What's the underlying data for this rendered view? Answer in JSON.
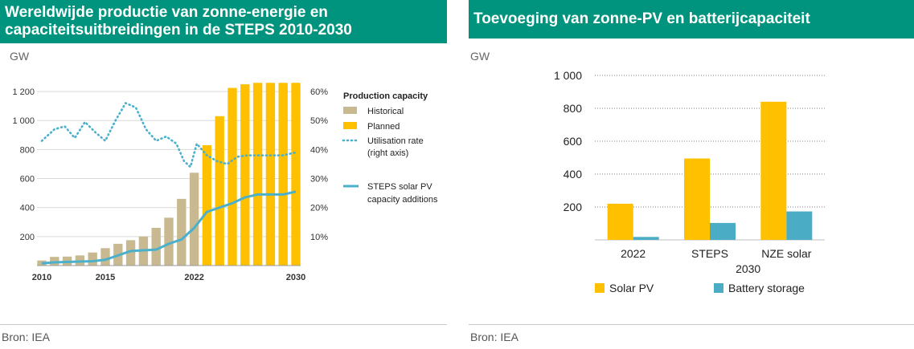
{
  "left": {
    "title": "Wereldwijde productie van zonne-energie en capaciteitsuitbreidingen in de STEPS 2010-2030",
    "unit": "GW",
    "source": "Bron: IEA"
  },
  "right": {
    "title": "Toevoeging van zonne-PV en batterijcapaciteit",
    "unit": "GW",
    "source": "Bron: IEA"
  },
  "colors": {
    "header_bg": "#00947e",
    "historical": "#c9b990",
    "planned": "#ffc000",
    "steps_line": "#4ab0cc",
    "solar_pv": "#ffc000",
    "battery": "#4bacc6"
  },
  "chart_data": [
    {
      "type": "bar",
      "title": "Wereldwijde productie van zonne-energie en capaciteitsuitbreidingen in de STEPS 2010-2030",
      "ylabel": "GW",
      "ylim": [
        0,
        1300
      ],
      "y_ticks": [
        200,
        400,
        600,
        800,
        1000,
        1200
      ],
      "y_tick_labels": [
        "200",
        "400",
        "600",
        "800",
        "1 000",
        "1 200"
      ],
      "y2lim": [
        0,
        0.65
      ],
      "y2_ticks": [
        0.1,
        0.2,
        0.3,
        0.4,
        0.5,
        0.6
      ],
      "y2_tick_labels": [
        "10%",
        "20%",
        "30%",
        "40%",
        "50%",
        "60%"
      ],
      "x_tick_labels": [
        "2010",
        "2015",
        "2022",
        "2030"
      ],
      "x_tick_years": [
        2010,
        2015,
        2022,
        2030
      ],
      "legend_title": "Production capacity",
      "x": [
        2010,
        2011,
        2012,
        2013,
        2014,
        2015,
        2016,
        2017,
        2018,
        2019,
        2020,
        2021,
        2022,
        2023,
        2024,
        2025,
        2026,
        2027,
        2028,
        2029,
        2030
      ],
      "series": [
        {
          "name": "Historical",
          "kind": "bar",
          "axis": "left",
          "values": [
            35,
            60,
            62,
            70,
            90,
            120,
            150,
            175,
            200,
            260,
            330,
            460,
            640,
            null,
            null,
            null,
            null,
            null,
            null,
            null,
            null
          ]
        },
        {
          "name": "Planned",
          "kind": "bar",
          "axis": "left",
          "values": [
            null,
            null,
            null,
            null,
            null,
            null,
            null,
            null,
            null,
            null,
            null,
            null,
            null,
            830,
            1030,
            1225,
            1250,
            1260,
            1260,
            1260,
            1260
          ]
        },
        {
          "name": "Utilisation rate",
          "label_lines": [
            "Utilisation rate",
            "(right axis)"
          ],
          "kind": "line-dotted",
          "axis": "right",
          "x": [
            2010,
            2011,
            2011.8,
            2012.6,
            2013.4,
            2014.2,
            2015,
            2015.8,
            2016.6,
            2017.4,
            2018.2,
            2019,
            2019.8,
            2020.6,
            2021.2,
            2021.7,
            2022.2,
            2023,
            2023.8,
            2024.6,
            2025.4,
            2026.2,
            2027,
            2028,
            2029,
            2030
          ],
          "values": [
            0.43,
            0.47,
            0.48,
            0.44,
            0.495,
            0.46,
            0.43,
            0.5,
            0.56,
            0.545,
            0.47,
            0.43,
            0.445,
            0.42,
            0.36,
            0.34,
            0.42,
            0.38,
            0.36,
            0.35,
            0.375,
            0.38,
            0.38,
            0.38,
            0.38,
            0.39
          ]
        },
        {
          "name": "STEPS solar PV capacity additions",
          "label_lines": [
            "STEPS solar PV",
            "capacity additions"
          ],
          "kind": "line",
          "axis": "left",
          "values": [
            15,
            22,
            25,
            28,
            30,
            40,
            70,
            100,
            105,
            110,
            150,
            180,
            260,
            370,
            400,
            430,
            470,
            490,
            490,
            490,
            510
          ]
        }
      ]
    },
    {
      "type": "bar",
      "title": "Toevoeging van zonne-PV en batterijcapaciteit",
      "ylabel": "GW",
      "ylim": [
        0,
        1000
      ],
      "y_ticks": [
        200,
        400,
        600,
        800,
        1000
      ],
      "y_tick_labels": [
        "200",
        "400",
        "600",
        "800",
        "1 000"
      ],
      "categories": [
        "2022",
        "STEPS",
        "NZE solar"
      ],
      "group_label": "2030",
      "series": [
        {
          "name": "Solar PV",
          "values": [
            220,
            495,
            840
          ]
        },
        {
          "name": "Battery storage",
          "values": [
            18,
            103,
            173
          ]
        }
      ]
    }
  ]
}
